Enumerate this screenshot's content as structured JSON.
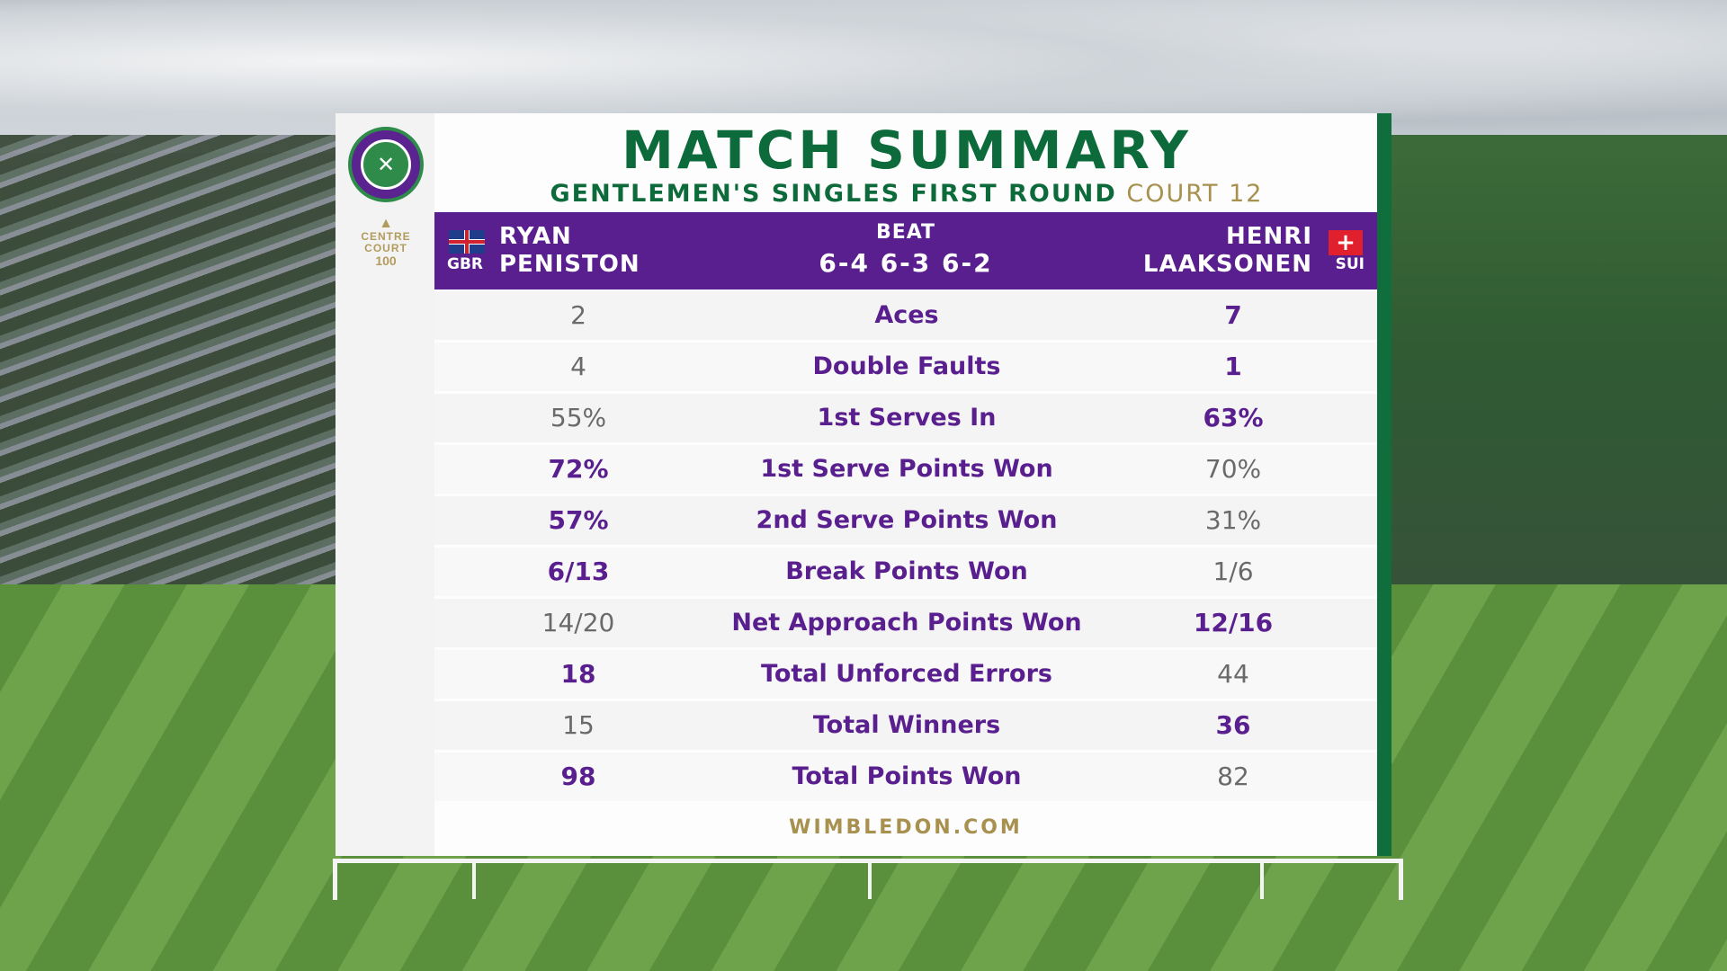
{
  "title": "MATCH SUMMARY",
  "subtitle": {
    "round": "GENTLEMEN'S SINGLES FIRST ROUND",
    "court": "COURT 12"
  },
  "branding": {
    "centre_court": {
      "line1": "CENTRE",
      "line2": "COURT",
      "line3": "100"
    },
    "footer": "WIMBLEDON.COM"
  },
  "players": {
    "left": {
      "first": "RYAN",
      "last": "PENISTON",
      "code": "GBR"
    },
    "right": {
      "first": "HENRI",
      "last": "LAAKSONEN",
      "code": "SUI"
    }
  },
  "result": {
    "label": "BEAT",
    "score": "6-4 6-3 6-2"
  },
  "colors": {
    "purple": "#5a1f8e",
    "green": "#0d6b3b",
    "gold": "#a8914e"
  },
  "stats": [
    {
      "label": "Aces",
      "left": "2",
      "right": "7",
      "leader": "right"
    },
    {
      "label": "Double Faults",
      "left": "4",
      "right": "1",
      "leader": "right"
    },
    {
      "label": "1st Serves In",
      "left": "55%",
      "right": "63%",
      "leader": "right"
    },
    {
      "label": "1st Serve Points Won",
      "left": "72%",
      "right": "70%",
      "leader": "left"
    },
    {
      "label": "2nd Serve Points Won",
      "left": "57%",
      "right": "31%",
      "leader": "left"
    },
    {
      "label": "Break Points Won",
      "left": "6/13",
      "right": "1/6",
      "leader": "left"
    },
    {
      "label": "Net Approach Points Won",
      "left": "14/20",
      "right": "12/16",
      "leader": "right"
    },
    {
      "label": "Total Unforced Errors",
      "left": "18",
      "right": "44",
      "leader": "left"
    },
    {
      "label": "Total Winners",
      "left": "15",
      "right": "36",
      "leader": "right"
    },
    {
      "label": "Total Points Won",
      "left": "98",
      "right": "82",
      "leader": "left"
    }
  ]
}
